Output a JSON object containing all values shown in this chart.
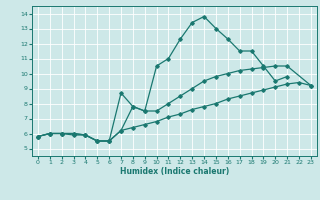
{
  "xlabel": "Humidex (Indice chaleur)",
  "xlim": [
    -0.5,
    23.5
  ],
  "ylim": [
    4.5,
    14.5
  ],
  "xticks": [
    0,
    1,
    2,
    3,
    4,
    5,
    6,
    7,
    8,
    9,
    10,
    11,
    12,
    13,
    14,
    15,
    16,
    17,
    18,
    19,
    20,
    21,
    22,
    23
  ],
  "yticks": [
    5,
    6,
    7,
    8,
    9,
    10,
    11,
    12,
    13,
    14
  ],
  "bg_color": "#cde8e8",
  "line_color": "#1a7870",
  "grid_color": "#ffffff",
  "line1_x": [
    0,
    1,
    2,
    3,
    4,
    5,
    6,
    7,
    8,
    9,
    10,
    11,
    12,
    13,
    14,
    15,
    16,
    17,
    18,
    19,
    20,
    21
  ],
  "line1_y": [
    5.8,
    6.0,
    6.0,
    6.0,
    5.9,
    5.5,
    5.5,
    6.2,
    7.8,
    7.5,
    10.5,
    11.0,
    12.3,
    13.4,
    13.8,
    13.0,
    12.3,
    11.5,
    11.5,
    10.5,
    9.5,
    9.8
  ],
  "line2_x": [
    0,
    1,
    2,
    3,
    4,
    5,
    6,
    7,
    8,
    9,
    10,
    11,
    12,
    13,
    14,
    15,
    16,
    17,
    18,
    19,
    20,
    21,
    23
  ],
  "line2_y": [
    5.8,
    6.0,
    6.0,
    5.9,
    5.9,
    5.5,
    5.5,
    8.7,
    7.8,
    7.5,
    7.5,
    8.0,
    8.5,
    9.0,
    9.5,
    9.8,
    10.0,
    10.2,
    10.3,
    10.4,
    10.5,
    10.5,
    9.2
  ],
  "line3_x": [
    0,
    1,
    2,
    3,
    4,
    5,
    6,
    7,
    8,
    9,
    10,
    11,
    12,
    13,
    14,
    15,
    16,
    17,
    18,
    19,
    20,
    21,
    22,
    23
  ],
  "line3_y": [
    5.8,
    6.0,
    6.0,
    6.0,
    5.9,
    5.5,
    5.5,
    6.2,
    6.4,
    6.6,
    6.8,
    7.1,
    7.3,
    7.6,
    7.8,
    8.0,
    8.3,
    8.5,
    8.7,
    8.9,
    9.1,
    9.3,
    9.4,
    9.2
  ]
}
